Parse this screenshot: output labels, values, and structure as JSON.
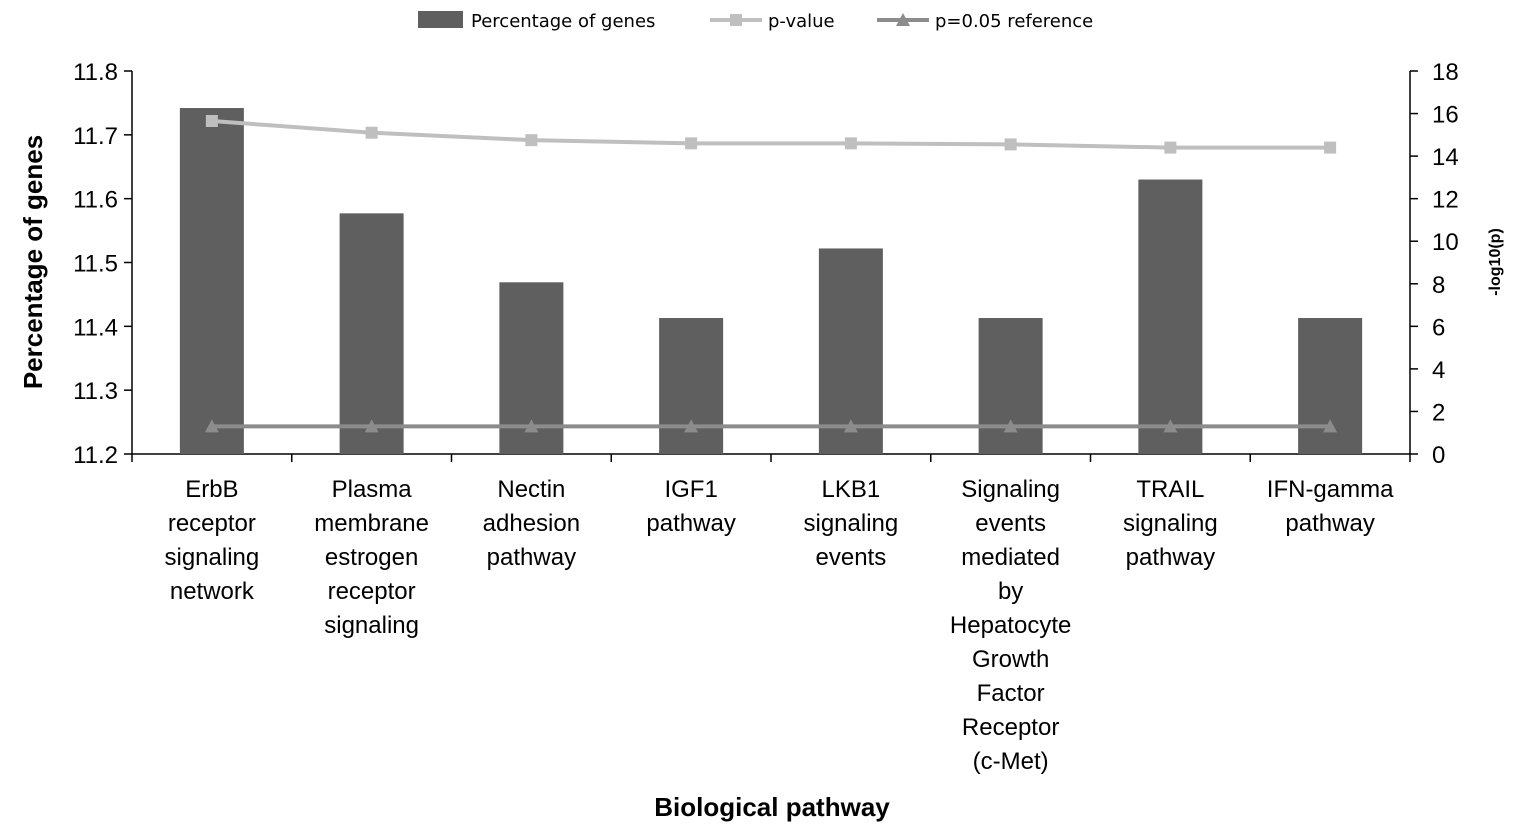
{
  "chart_data": {
    "type": "bar",
    "categories": [
      [
        "ErbB",
        "receptor",
        "signaling",
        "network"
      ],
      [
        "Plasma",
        "membrane",
        "estrogen",
        "receptor",
        "signaling"
      ],
      [
        "Nectin",
        "adhesion",
        "pathway"
      ],
      [
        "IGF1",
        "pathway"
      ],
      [
        "LKB1",
        "signaling",
        "events"
      ],
      [
        "Signaling",
        "events",
        "mediated",
        "by",
        "Hepatocyte",
        "Growth",
        "Factor",
        "Receptor",
        "(c-Met)"
      ],
      [
        "TRAIL",
        "signaling",
        "pathway"
      ],
      [
        "IFN-gamma",
        "pathway"
      ]
    ],
    "series": [
      {
        "name": "Percentage of genes",
        "type": "bar",
        "axis": "left",
        "color": "#5f5f5f",
        "values": [
          11.742,
          11.577,
          11.469,
          11.413,
          11.522,
          11.413,
          11.63,
          11.413
        ]
      },
      {
        "name": "p-value",
        "type": "line",
        "axis": "right",
        "color": "#bfbfbf",
        "marker": "square",
        "values": [
          15.65,
          15.1,
          14.75,
          14.6,
          14.6,
          14.55,
          14.4,
          14.4
        ]
      },
      {
        "name": "p=0.05 reference",
        "type": "line",
        "axis": "right",
        "color": "#8c8c8c",
        "marker": "triangle",
        "values": [
          1.3,
          1.3,
          1.3,
          1.3,
          1.3,
          1.3,
          1.3,
          1.3
        ]
      }
    ],
    "xlabel": "Biological pathway",
    "ylabel": "Percentage of genes",
    "y2label": "-log10(p)",
    "ylim": [
      11.2,
      11.8
    ],
    "yticks": [
      "11.2",
      "11.3",
      "11.4",
      "11.5",
      "11.6",
      "11.7",
      "11.8"
    ],
    "y2lim": [
      0,
      18
    ],
    "y2ticks": [
      "0",
      "2",
      "4",
      "6",
      "8",
      "10",
      "12",
      "14",
      "16",
      "18"
    ],
    "legend_position": "top",
    "grid": false
  }
}
